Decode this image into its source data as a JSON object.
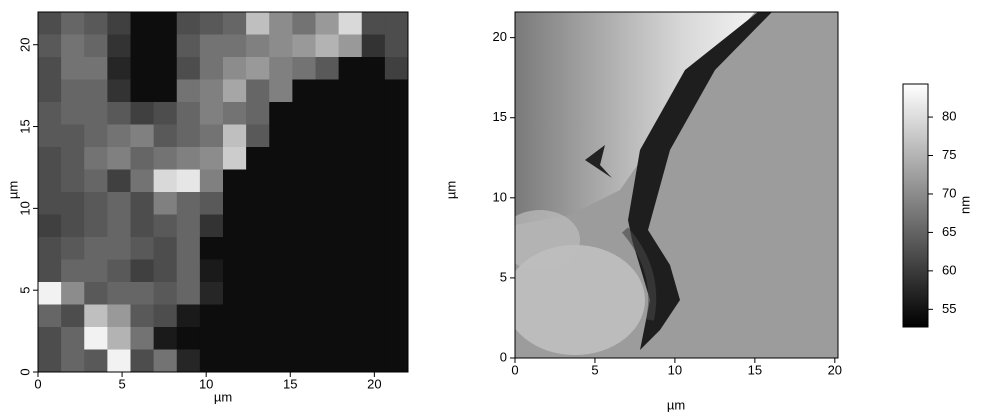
{
  "chart_data": [
    {
      "type": "heatmap",
      "xlabel": "µm",
      "ylabel": "µm",
      "xlim": [
        0,
        22
      ],
      "ylim": [
        0,
        22
      ],
      "xticks": [
        0,
        5,
        10,
        15,
        20
      ],
      "yticks": [
        0,
        5,
        10,
        15,
        20
      ],
      "values": [
        [
          30,
          40,
          35,
          25,
          5,
          5,
          30,
          35,
          40,
          75,
          55,
          45,
          60,
          85,
          30,
          30
        ],
        [
          35,
          45,
          40,
          20,
          5,
          5,
          35,
          45,
          45,
          50,
          55,
          60,
          70,
          60,
          20,
          30
        ],
        [
          30,
          45,
          45,
          15,
          5,
          5,
          30,
          45,
          55,
          60,
          50,
          45,
          35,
          5,
          5,
          25
        ],
        [
          30,
          40,
          40,
          20,
          5,
          5,
          45,
          50,
          65,
          40,
          50,
          5,
          5,
          5,
          5,
          5
        ],
        [
          35,
          40,
          40,
          35,
          25,
          30,
          40,
          50,
          45,
          40,
          5,
          5,
          5,
          5,
          5,
          5
        ],
        [
          35,
          35,
          40,
          45,
          50,
          35,
          40,
          45,
          75,
          35,
          5,
          5,
          5,
          5,
          5,
          5
        ],
        [
          30,
          35,
          45,
          50,
          40,
          45,
          50,
          55,
          80,
          5,
          5,
          5,
          5,
          5,
          5,
          5
        ],
        [
          30,
          35,
          40,
          25,
          45,
          85,
          90,
          50,
          5,
          5,
          5,
          5,
          5,
          5,
          5,
          5
        ],
        [
          30,
          30,
          35,
          40,
          30,
          50,
          40,
          35,
          5,
          5,
          5,
          5,
          5,
          5,
          5,
          5
        ],
        [
          25,
          30,
          35,
          40,
          30,
          35,
          40,
          20,
          5,
          5,
          5,
          5,
          5,
          5,
          5,
          5
        ],
        [
          30,
          35,
          40,
          40,
          35,
          30,
          40,
          5,
          5,
          5,
          5,
          5,
          5,
          5,
          5,
          5
        ],
        [
          30,
          40,
          40,
          35,
          25,
          30,
          40,
          10,
          5,
          5,
          5,
          5,
          5,
          5,
          5,
          5
        ],
        [
          95,
          55,
          35,
          40,
          40,
          35,
          40,
          15,
          5,
          5,
          5,
          5,
          5,
          5,
          5,
          5
        ],
        [
          40,
          30,
          75,
          60,
          35,
          30,
          10,
          5,
          5,
          5,
          5,
          5,
          5,
          5,
          5,
          5
        ],
        [
          30,
          40,
          95,
          70,
          45,
          10,
          5,
          5,
          5,
          5,
          5,
          5,
          5,
          5,
          5,
          5
        ],
        [
          30,
          40,
          35,
          95,
          30,
          45,
          15,
          5,
          5,
          5,
          5,
          5,
          5,
          5,
          5,
          5
        ]
      ]
    },
    {
      "type": "image",
      "xlabel": "µm",
      "ylabel": "µm",
      "xlim": [
        0,
        20.2
      ],
      "ylim": [
        0,
        21.6
      ],
      "xticks": [
        0,
        5,
        10,
        15,
        20
      ],
      "yticks": [
        0,
        5,
        10,
        15,
        20
      ],
      "colorbar": {
        "label": "nm",
        "lim": [
          52.7,
          84.3
        ],
        "ticks": [
          55,
          60,
          65,
          70,
          75,
          80
        ]
      }
    }
  ]
}
